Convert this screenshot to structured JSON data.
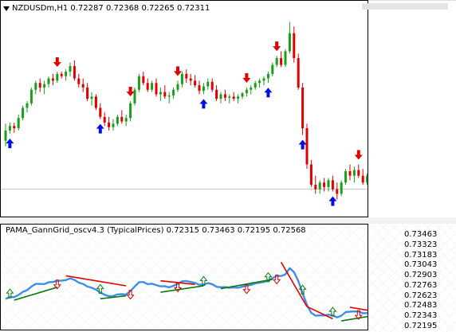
{
  "main_chart": {
    "symbol_label": "NZDUSDm,H1",
    "ohlc": [
      "0.72287",
      "0.72368",
      "0.72265",
      "0.72311"
    ],
    "menu_icon": "triangle-down-icon",
    "candles": [
      [
        0.72525,
        0.726,
        0.725,
        0.7257
      ],
      [
        0.7257,
        0.72605,
        0.72555,
        0.7259
      ],
      [
        0.7259,
        0.72605,
        0.7256,
        0.7258
      ],
      [
        0.7258,
        0.7264,
        0.7257,
        0.72625
      ],
      [
        0.72625,
        0.7268,
        0.72615,
        0.7267
      ],
      [
        0.7267,
        0.727,
        0.7265,
        0.7269
      ],
      [
        0.7269,
        0.7276,
        0.7268,
        0.7275
      ],
      [
        0.7275,
        0.7279,
        0.7273,
        0.7278
      ],
      [
        0.7278,
        0.728,
        0.7274,
        0.7276
      ],
      [
        0.7276,
        0.7279,
        0.7273,
        0.72775
      ],
      [
        0.72775,
        0.7281,
        0.7276,
        0.728
      ],
      [
        0.728,
        0.7282,
        0.7277,
        0.7279
      ],
      [
        0.7279,
        0.7283,
        0.7278,
        0.7282
      ],
      [
        0.7282,
        0.7283,
        0.728,
        0.7281
      ],
      [
        0.7281,
        0.7284,
        0.7279,
        0.7283
      ],
      [
        0.7283,
        0.7287,
        0.7281,
        0.72855
      ],
      [
        0.72855,
        0.7288,
        0.7279,
        0.728
      ],
      [
        0.728,
        0.7282,
        0.7276,
        0.72775
      ],
      [
        0.72775,
        0.728,
        0.7274,
        0.7276
      ],
      [
        0.7276,
        0.7278,
        0.727,
        0.7271
      ],
      [
        0.7271,
        0.7274,
        0.7268,
        0.7272
      ],
      [
        0.7272,
        0.7273,
        0.7266,
        0.7267
      ],
      [
        0.7267,
        0.7269,
        0.7262,
        0.7263
      ],
      [
        0.7263,
        0.7265,
        0.7259,
        0.72605
      ],
      [
        0.72605,
        0.7263,
        0.7257,
        0.72585
      ],
      [
        0.72585,
        0.7262,
        0.7257,
        0.726
      ],
      [
        0.726,
        0.7264,
        0.7259,
        0.7263
      ],
      [
        0.7263,
        0.7266,
        0.726,
        0.7261
      ],
      [
        0.7261,
        0.7264,
        0.7259,
        0.72625
      ],
      [
        0.72625,
        0.727,
        0.7261,
        0.7269
      ],
      [
        0.7269,
        0.7276,
        0.7268,
        0.7275
      ],
      [
        0.7275,
        0.7282,
        0.7274,
        0.7281
      ],
      [
        0.7281,
        0.7283,
        0.7277,
        0.7278
      ],
      [
        0.7278,
        0.728,
        0.7274,
        0.7275
      ],
      [
        0.7275,
        0.7279,
        0.7274,
        0.7278
      ],
      [
        0.7278,
        0.728,
        0.7272,
        0.7273
      ],
      [
        0.7273,
        0.7276,
        0.727,
        0.7274
      ],
      [
        0.7274,
        0.7277,
        0.7271,
        0.7272
      ],
      [
        0.7272,
        0.7274,
        0.7269,
        0.72725
      ],
      [
        0.72725,
        0.7276,
        0.7271,
        0.7275
      ],
      [
        0.7275,
        0.7279,
        0.7274,
        0.72775
      ],
      [
        0.72775,
        0.7283,
        0.7276,
        0.7282
      ],
      [
        0.7282,
        0.7284,
        0.7278,
        0.728
      ],
      [
        0.728,
        0.7282,
        0.7277,
        0.7279
      ],
      [
        0.7279,
        0.72815,
        0.7276,
        0.7277
      ],
      [
        0.7277,
        0.7279,
        0.7273,
        0.72745
      ],
      [
        0.72745,
        0.7278,
        0.7273,
        0.72765
      ],
      [
        0.72765,
        0.728,
        0.7275,
        0.72785
      ],
      [
        0.72785,
        0.728,
        0.7274,
        0.7275
      ],
      [
        0.7275,
        0.7277,
        0.727,
        0.7271
      ],
      [
        0.7271,
        0.7274,
        0.7269,
        0.7273
      ],
      [
        0.7273,
        0.7275,
        0.727,
        0.72715
      ],
      [
        0.72715,
        0.7273,
        0.7269,
        0.7272
      ],
      [
        0.7272,
        0.7274,
        0.727,
        0.7271
      ],
      [
        0.7271,
        0.7273,
        0.7269,
        0.7272
      ],
      [
        0.7272,
        0.7274,
        0.7271,
        0.72735
      ],
      [
        0.72735,
        0.7276,
        0.7272,
        0.7275
      ],
      [
        0.7275,
        0.7277,
        0.7273,
        0.7276
      ],
      [
        0.7276,
        0.7279,
        0.7275,
        0.7278
      ],
      [
        0.7278,
        0.728,
        0.7276,
        0.7279
      ],
      [
        0.7279,
        0.7281,
        0.7277,
        0.728
      ],
      [
        0.728,
        0.7283,
        0.7278,
        0.7282
      ],
      [
        0.7282,
        0.7287,
        0.7281,
        0.7286
      ],
      [
        0.7286,
        0.729,
        0.7285,
        0.7289
      ],
      [
        0.7289,
        0.7292,
        0.7285,
        0.7286
      ],
      [
        0.7286,
        0.7293,
        0.7285,
        0.7292
      ],
      [
        0.7292,
        0.7305,
        0.7291,
        0.73
      ],
      [
        0.73,
        0.7303,
        0.7287,
        0.7289
      ],
      [
        0.7289,
        0.7291,
        0.7275,
        0.7276
      ],
      [
        0.7276,
        0.7278,
        0.7255,
        0.7258
      ],
      [
        0.7258,
        0.726,
        0.724,
        0.7242
      ],
      [
        0.7242,
        0.7244,
        0.7232,
        0.7233
      ],
      [
        0.7233,
        0.7237,
        0.7229,
        0.7231
      ],
      [
        0.7231,
        0.7235,
        0.7229,
        0.7234
      ],
      [
        0.7234,
        0.7236,
        0.723,
        0.7232
      ],
      [
        0.7232,
        0.7236,
        0.723,
        0.7235
      ],
      [
        0.7235,
        0.7237,
        0.723,
        0.7231
      ],
      [
        0.7231,
        0.7234,
        0.72265,
        0.7229
      ],
      [
        0.7229,
        0.7235,
        0.7228,
        0.7234
      ],
      [
        0.7234,
        0.724,
        0.7233,
        0.7239
      ],
      [
        0.7239,
        0.7242,
        0.7235,
        0.7237
      ],
      [
        0.7237,
        0.7241,
        0.7234,
        0.72395
      ],
      [
        0.72395,
        0.7242,
        0.7236,
        0.7237
      ],
      [
        0.7237,
        0.724,
        0.7233,
        0.7234
      ],
      [
        0.7234,
        0.7238,
        0.7233,
        0.7237
      ],
      [
        0.7237,
        0.72395,
        0.7232,
        0.7234
      ],
      [
        0.7234,
        0.72368,
        0.72265,
        0.72311
      ]
    ],
    "buy_arrow_bars": [
      1,
      22,
      46,
      61,
      69,
      76
    ],
    "sell_arrow_bars": [
      12,
      29,
      40,
      56,
      63,
      82
    ]
  },
  "indicator": {
    "name": "PAMA_GannGrid_oscv4.3",
    "price_type": "(TypicalPrices)",
    "values": [
      "0.72315",
      "0.73463",
      "0.72195",
      "0.72568"
    ],
    "y_ticks": [
      "0.73463",
      "0.73323",
      "0.73183",
      "0.73043",
      "0.72903",
      "0.72763",
      "0.72623",
      "0.72483",
      "0.72343",
      "0.72195"
    ],
    "line_color": "#3d8ee8",
    "down_line_color": "#e00000",
    "up_line_color": "#0a7a0a"
  }
}
